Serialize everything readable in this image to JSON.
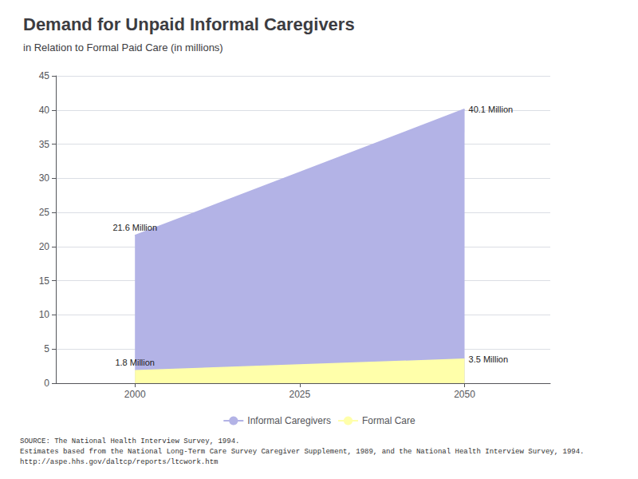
{
  "chart_data": {
    "type": "area",
    "title": "Demand for Unpaid Informal Caregivers",
    "subtitle": "in Relation to Formal Paid Care (in millions)",
    "x": [
      2000,
      2050
    ],
    "series": [
      {
        "name": "Informal Caregivers",
        "color": "#b3b3e6",
        "values": [
          21.6,
          40.1
        ],
        "value_labels": [
          "21.6 Million",
          "40.1 Million"
        ]
      },
      {
        "name": "Formal Care",
        "color": "#ffffaa",
        "values": [
          1.8,
          3.5
        ],
        "value_labels": [
          "1.8 Million",
          "3.5 Million"
        ]
      }
    ],
    "xlim": [
      1988,
      2063
    ],
    "xticks": [
      2000,
      2025,
      2050
    ],
    "ylim": [
      0,
      45
    ],
    "yticks": [
      0,
      5,
      10,
      15,
      20,
      25,
      30,
      35,
      40,
      45
    ],
    "grid": true,
    "legend": "bottom",
    "data_labels": true,
    "source": "SOURCE: The National Health Interview Survey, 1994.\nEstimates based from the National Long-Term Care Survey Caregiver Supplement, 1989, and the National Health Interview Survey, 1994.\nhttp://aspe.hhs.gov/daltcp/reports/ltcwork.htm"
  }
}
